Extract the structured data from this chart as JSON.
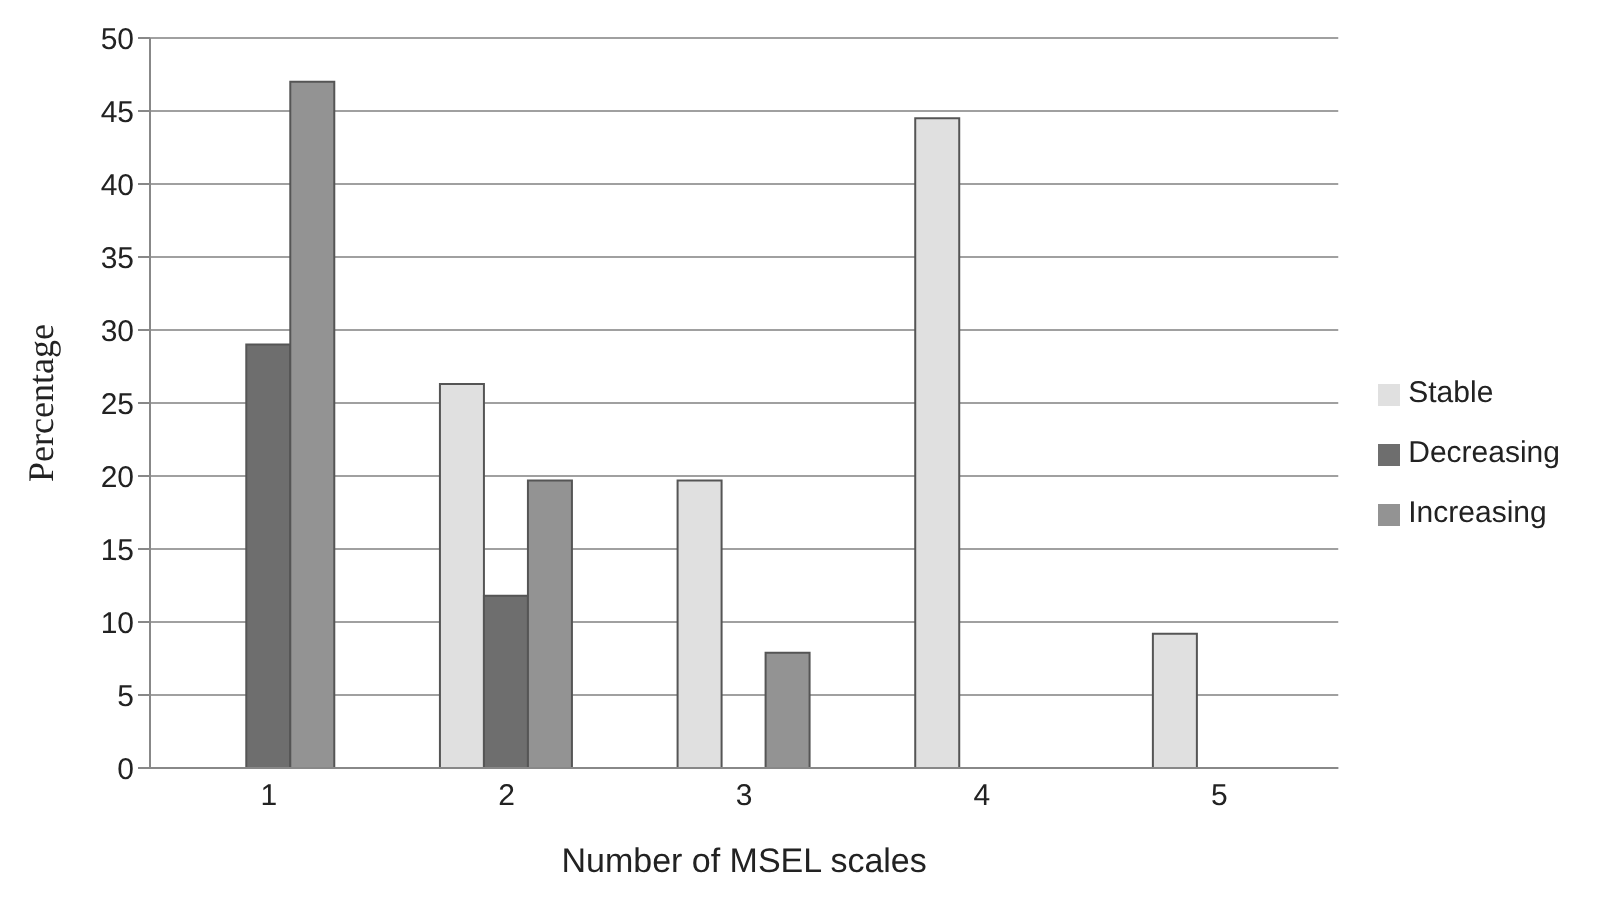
{
  "chart_data": {
    "type": "bar",
    "xlabel": "Number of MSEL scales",
    "ylabel": "Percentage",
    "categories": [
      "1",
      "2",
      "3",
      "4",
      "5"
    ],
    "series": [
      {
        "name": "Stable",
        "color": "#e0e0e0",
        "values": [
          0,
          26.3,
          19.7,
          44.5,
          9.2
        ]
      },
      {
        "name": "Decreasing",
        "color": "#6e6e6e",
        "values": [
          29,
          11.8,
          0,
          0,
          0
        ]
      },
      {
        "name": "Increasing",
        "color": "#939393",
        "values": [
          47,
          19.7,
          7.9,
          0,
          0
        ]
      }
    ],
    "ylim": [
      0,
      50
    ],
    "yticks": [
      0,
      5,
      10,
      15,
      20,
      25,
      30,
      35,
      40,
      45,
      50
    ],
    "grid": "y",
    "legend": "right"
  }
}
